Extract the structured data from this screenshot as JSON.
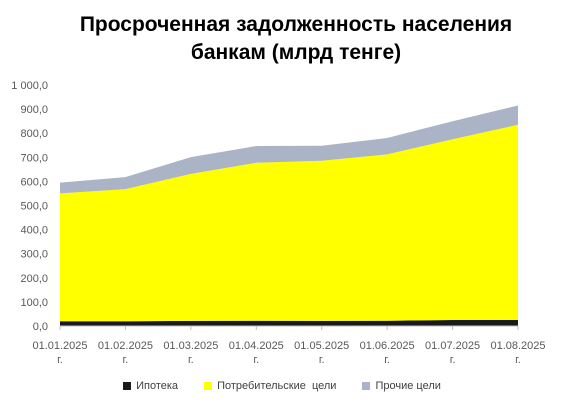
{
  "chart_data": {
    "type": "area",
    "stacked": true,
    "title_lines": [
      "Просроченная задолженность населения",
      "банкам (млрд тенге)"
    ],
    "categories": [
      [
        "01.01.2025",
        "г."
      ],
      [
        "01.02.2025",
        "г."
      ],
      [
        "01.03.2025",
        "г."
      ],
      [
        "01.04.2025",
        "г."
      ],
      [
        "01.05.2025",
        "г."
      ],
      [
        "01.06.2025",
        "г."
      ],
      [
        "01.07.2025",
        "г."
      ],
      [
        "01.08.2025",
        "г."
      ]
    ],
    "series": [
      {
        "name": "Ипотека",
        "color": "#1a1a1a",
        "values": [
          20,
          20,
          21,
          22,
          21,
          22,
          25,
          25
        ]
      },
      {
        "name": "Потребительские  цели",
        "color": "#ffff00",
        "values": [
          530,
          548,
          610,
          655,
          665,
          690,
          750,
          810
        ]
      },
      {
        "name": "Прочие цели",
        "color": "#aab4c6",
        "values": [
          45,
          50,
          70,
          70,
          62,
          68,
          75,
          80
        ]
      }
    ],
    "y_ticks": [
      "0,0",
      "100,0",
      "200,0",
      "300,0",
      "400,0",
      "500,0",
      "600,0",
      "700,0",
      "800,0",
      "900,0",
      "1 000,0"
    ],
    "ylim": [
      0,
      1000
    ],
    "grid": false,
    "legend_position": "bottom"
  }
}
